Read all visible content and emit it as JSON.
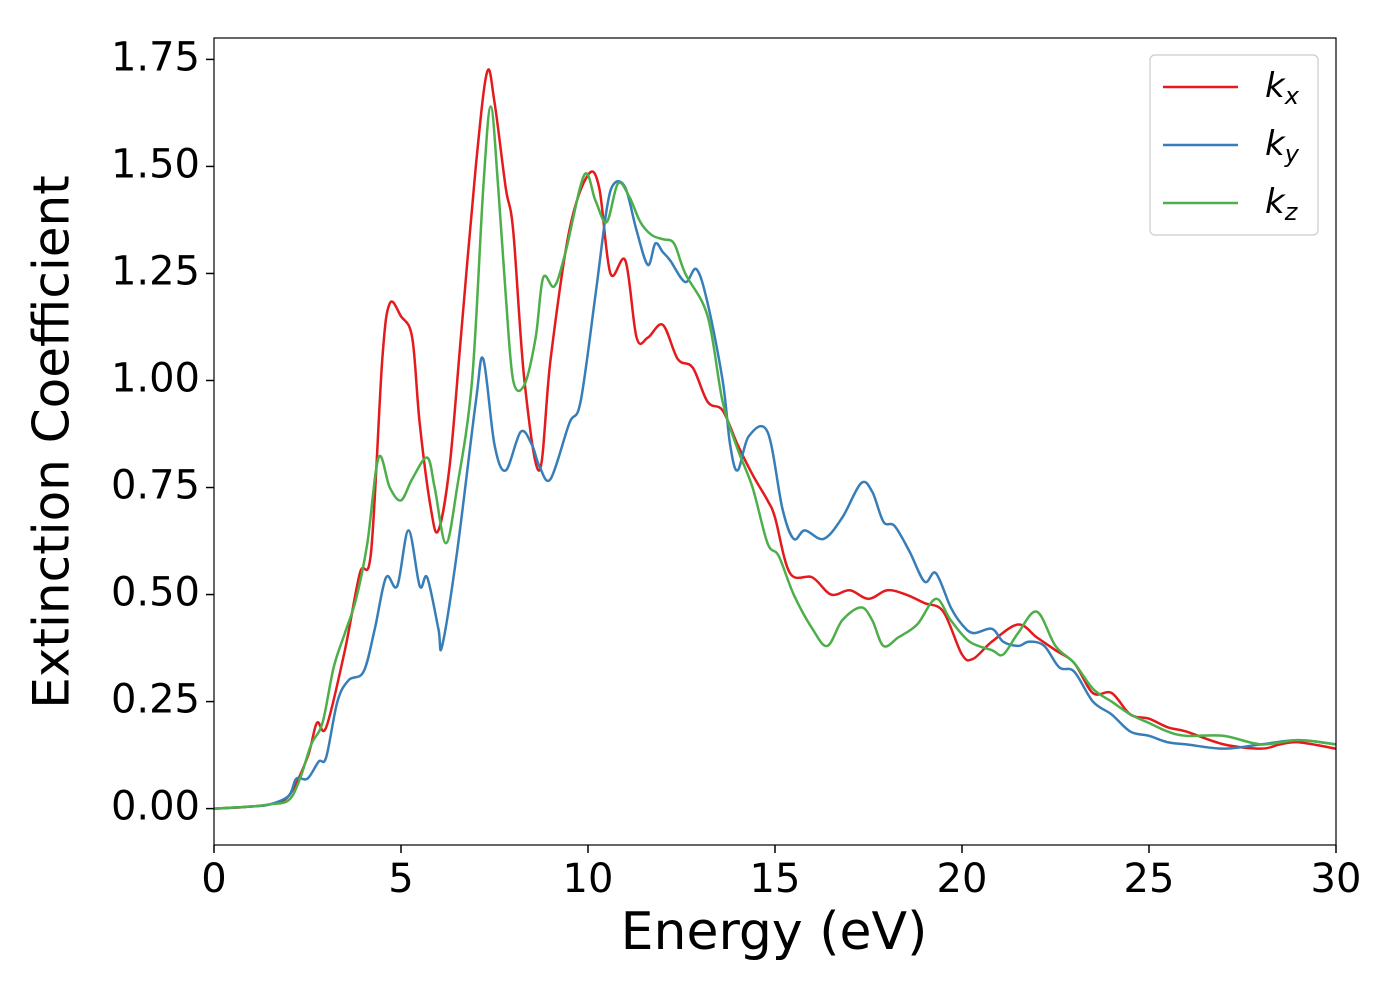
{
  "chart_data": {
    "type": "line",
    "xlabel": "Energy (eV)",
    "ylabel": "Extinction Coefficient",
    "xlim": [
      0,
      30
    ],
    "xticks": [
      0,
      5,
      10,
      15,
      20,
      25,
      30
    ],
    "ylim": [
      -0.085,
      1.8
    ],
    "yticks": [
      {
        "value": 0,
        "label": "0.00"
      },
      {
        "value": 0.25,
        "label": "0.25"
      },
      {
        "value": 0.5,
        "label": "0.50"
      },
      {
        "value": 0.75,
        "label": "0.75"
      },
      {
        "value": 1,
        "label": "1.00"
      },
      {
        "value": 1.25,
        "label": "1.25"
      },
      {
        "value": 1.5,
        "label": "1.50"
      },
      {
        "value": 1.75,
        "label": "1.75"
      }
    ],
    "legend": "upper right",
    "series": [
      {
        "name": "kx",
        "color": "#e41a1c",
        "x": [
          0,
          0.5,
          1,
          1.5,
          2,
          2.5,
          2.75,
          3,
          3.5,
          3.9,
          4.2,
          4.5,
          4.7,
          5,
          5.3,
          5.5,
          5.8,
          6,
          6.3,
          6.6,
          7,
          7.3,
          7.5,
          7.8,
          8,
          8.3,
          8.7,
          9,
          9.5,
          10,
          10.3,
          10.6,
          11,
          11.3,
          11.6,
          12,
          12.4,
          12.8,
          13.2,
          13.6,
          14,
          14.4,
          14.8,
          15,
          15.4,
          16,
          16.5,
          17,
          17.5,
          18,
          18.5,
          19,
          19.5,
          20,
          20.3,
          20.8,
          21.5,
          22,
          22.5,
          23,
          23.5,
          24,
          24.5,
          25,
          25.5,
          26,
          27,
          28,
          28.5,
          29,
          30
        ],
        "values": [
          0,
          0.002,
          0.005,
          0.01,
          0.03,
          0.12,
          0.2,
          0.19,
          0.37,
          0.55,
          0.6,
          1.05,
          1.18,
          1.15,
          1.1,
          0.9,
          0.7,
          0.65,
          0.8,
          1.1,
          1.5,
          1.72,
          1.65,
          1.45,
          1.35,
          1.0,
          0.79,
          1.05,
          1.35,
          1.48,
          1.45,
          1.25,
          1.28,
          1.1,
          1.1,
          1.13,
          1.05,
          1.03,
          0.95,
          0.93,
          0.85,
          0.78,
          0.72,
          0.68,
          0.55,
          0.54,
          0.5,
          0.51,
          0.49,
          0.51,
          0.5,
          0.48,
          0.46,
          0.36,
          0.35,
          0.39,
          0.43,
          0.4,
          0.37,
          0.34,
          0.27,
          0.27,
          0.22,
          0.21,
          0.19,
          0.18,
          0.15,
          0.14,
          0.15,
          0.155,
          0.14
        ]
      },
      {
        "name": "ky",
        "color": "#377eb8",
        "x": [
          0,
          1,
          1.5,
          2,
          2.2,
          2.5,
          2.8,
          3,
          3.3,
          3.6,
          4,
          4.3,
          4.6,
          4.9,
          5.2,
          5.5,
          5.7,
          6,
          6.1,
          6.5,
          7,
          7.2,
          7.5,
          7.8,
          8.2,
          8.5,
          8.7,
          9,
          9.5,
          9.8,
          10.2,
          10.5,
          10.7,
          11,
          11.3,
          11.6,
          11.8,
          12,
          12.2,
          12.6,
          12.9,
          13.2,
          13.6,
          13.8,
          14,
          14.3,
          14.8,
          15.2,
          15.5,
          15.8,
          16.3,
          16.8,
          17.3,
          17.6,
          17.9,
          18.2,
          18.6,
          19,
          19.3,
          19.7,
          20,
          20.3,
          20.8,
          21.1,
          21.5,
          21.8,
          22.2,
          22.6,
          23,
          23.5,
          24,
          24.5,
          25,
          25.5,
          26,
          27,
          28,
          29,
          30
        ],
        "values": [
          0,
          0.005,
          0.01,
          0.03,
          0.07,
          0.07,
          0.11,
          0.12,
          0.25,
          0.3,
          0.32,
          0.42,
          0.54,
          0.52,
          0.65,
          0.52,
          0.54,
          0.42,
          0.38,
          0.6,
          0.95,
          1.05,
          0.85,
          0.79,
          0.88,
          0.85,
          0.8,
          0.77,
          0.9,
          0.95,
          1.2,
          1.4,
          1.46,
          1.45,
          1.35,
          1.27,
          1.32,
          1.3,
          1.28,
          1.23,
          1.26,
          1.18,
          1.0,
          0.85,
          0.79,
          0.87,
          0.88,
          0.7,
          0.63,
          0.65,
          0.63,
          0.68,
          0.76,
          0.74,
          0.67,
          0.66,
          0.6,
          0.53,
          0.55,
          0.47,
          0.43,
          0.41,
          0.42,
          0.39,
          0.38,
          0.39,
          0.38,
          0.33,
          0.32,
          0.25,
          0.22,
          0.18,
          0.17,
          0.155,
          0.15,
          0.14,
          0.15,
          0.16,
          0.15
        ]
      },
      {
        "name": "kz",
        "color": "#4daf4a",
        "x": [
          0,
          1,
          1.5,
          2,
          2.3,
          2.6,
          2.9,
          3.2,
          3.5,
          3.8,
          4.1,
          4.4,
          4.7,
          5,
          5.3,
          5.7,
          5.9,
          6.2,
          6.5,
          6.9,
          7.2,
          7.4,
          7.6,
          7.8,
          8,
          8.3,
          8.6,
          8.8,
          9.1,
          9.4,
          9.9,
          10.2,
          10.5,
          10.8,
          11.1,
          11.4,
          11.7,
          12,
          12.3,
          12.6,
          13.2,
          13.6,
          14,
          14.4,
          14.8,
          15.1,
          15.5,
          16,
          16.4,
          16.8,
          17.3,
          17.6,
          17.9,
          18.3,
          18.8,
          19.3,
          19.7,
          20.2,
          20.8,
          21.1,
          21.5,
          22,
          22.5,
          23,
          23.5,
          24,
          24.5,
          25,
          25.5,
          26,
          27,
          28,
          29,
          30
        ],
        "values": [
          0,
          0.005,
          0.01,
          0.02,
          0.07,
          0.15,
          0.2,
          0.33,
          0.41,
          0.49,
          0.62,
          0.82,
          0.75,
          0.72,
          0.77,
          0.82,
          0.75,
          0.62,
          0.75,
          1.0,
          1.45,
          1.64,
          1.45,
          1.2,
          1.0,
          0.99,
          1.1,
          1.24,
          1.22,
          1.3,
          1.48,
          1.42,
          1.37,
          1.46,
          1.43,
          1.37,
          1.34,
          1.33,
          1.32,
          1.25,
          1.15,
          0.95,
          0.84,
          0.75,
          0.62,
          0.59,
          0.5,
          0.42,
          0.38,
          0.44,
          0.47,
          0.44,
          0.38,
          0.4,
          0.43,
          0.49,
          0.44,
          0.39,
          0.37,
          0.36,
          0.41,
          0.46,
          0.38,
          0.34,
          0.28,
          0.25,
          0.22,
          0.2,
          0.18,
          0.17,
          0.17,
          0.15,
          0.16,
          0.15
        ]
      }
    ]
  }
}
